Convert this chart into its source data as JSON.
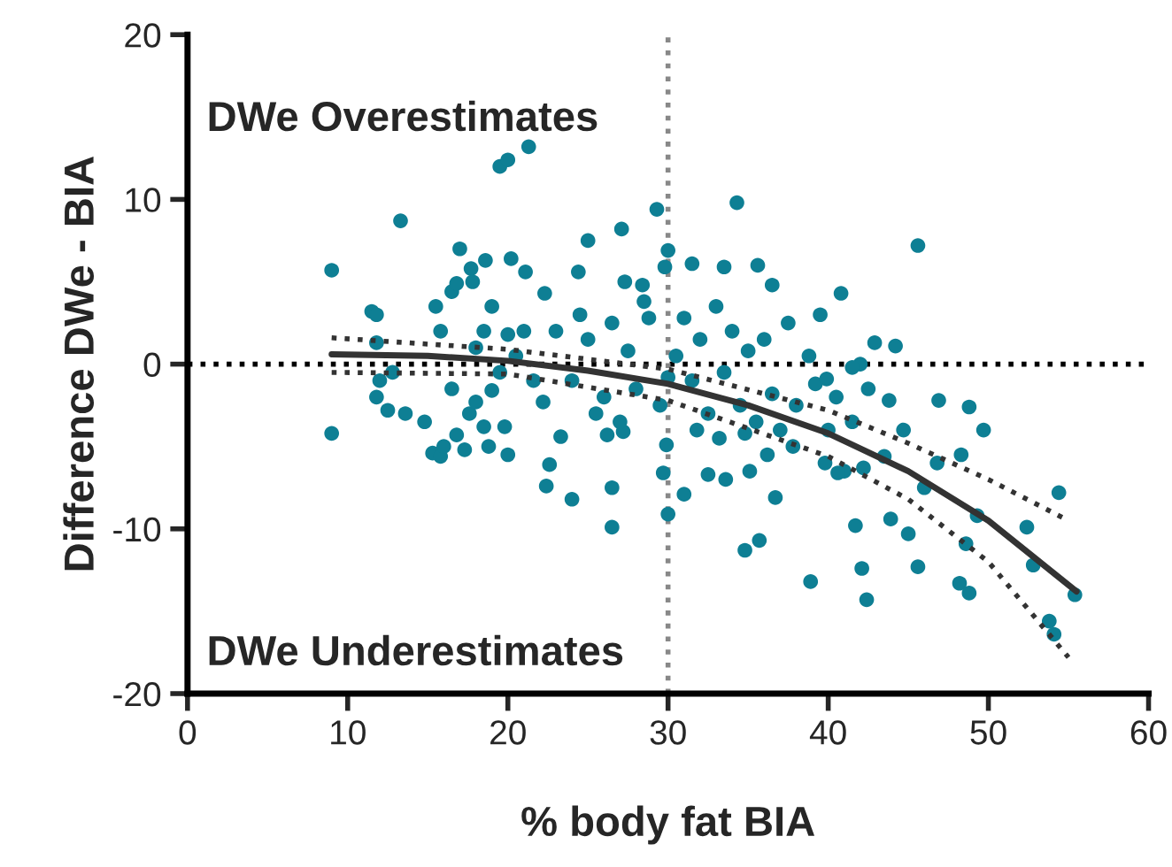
{
  "chart_data": {
    "type": "scatter",
    "xlabel": "% body fat BIA",
    "ylabel": "Difference DWe - BIA",
    "xlim": [
      0,
      60
    ],
    "ylim": [
      -20,
      20
    ],
    "xticks": [
      0,
      10,
      20,
      30,
      40,
      50,
      60
    ],
    "yticks": [
      -20,
      -10,
      0,
      10,
      20
    ],
    "grid": false,
    "annotations": [
      "DWe Overestimates",
      "DWe Underestimates"
    ],
    "ref_lines": [
      {
        "axis": "y",
        "value": 0,
        "color": "#000000",
        "line_style": "dotted"
      },
      {
        "axis": "x",
        "value": 30,
        "color": "#888888",
        "line_style": "dotted"
      }
    ],
    "series": [
      {
        "marker": "circle",
        "color": "#0e7f94",
        "x": [
          9.0,
          9.0,
          11.5,
          11.8,
          11.8,
          13.3,
          12.8,
          11.8,
          12.0,
          13.6,
          12.5,
          14.8,
          15.3,
          15.8,
          16.0,
          16.8,
          17.6,
          16.5,
          15.5,
          15.8,
          16.5,
          16.8,
          17.0,
          17.7,
          17.8,
          18.6,
          19.0,
          18.5,
          18.0,
          19.5,
          20.0,
          21.3,
          20.2,
          20.0,
          19.5,
          19.0,
          18.0,
          18.5,
          19.8,
          20.0,
          18.8,
          17.3,
          20.5,
          21.0,
          21.6,
          22.2,
          21.1,
          25.0,
          27.1,
          29.3,
          30.0,
          29.8,
          31.5,
          33.5,
          34.3,
          35.6,
          36.5,
          27.3,
          28.4,
          24.4,
          22.3,
          22.4,
          24.0,
          26.5,
          26.5,
          30.0,
          31.0,
          32.5,
          33.6,
          35.1,
          34.8,
          35.7,
          36.7,
          38.9,
          29.7,
          29.9,
          22.6,
          26.2,
          27.2,
          23.3,
          23,
          24,
          25,
          26,
          26.5,
          27.5,
          28,
          28.8,
          29.5,
          30.5,
          31,
          31.5,
          32,
          32.5,
          33,
          33.5,
          34,
          34.5,
          35,
          35.5,
          36,
          36.5,
          37,
          37.5,
          38,
          24.5,
          25.5,
          27,
          28.5,
          30,
          31.8,
          33.2,
          34.8,
          36.2,
          37.8,
          38.8,
          39.2,
          39.5,
          39.8,
          40,
          40.5,
          41,
          41.5,
          42,
          45.6,
          40.8,
          42.9,
          44.2,
          41.5,
          46.9,
          48.8,
          49.7,
          48.3,
          46.8,
          46.0,
          54.4,
          52.4,
          49.3,
          48.6,
          52.8,
          48.2,
          48.8,
          45.6,
          45.0,
          43.9,
          42.1,
          42.4,
          41.7,
          53.8,
          54.1,
          55.4,
          43.5,
          42.2,
          40.6,
          44.7,
          43.8,
          42.5,
          39.9
        ],
        "values": [
          5.7,
          -4.2,
          3.2,
          3.0,
          1.3,
          8.7,
          -0.5,
          -2.0,
          -1.0,
          -3.0,
          -2.8,
          -3.5,
          -5.4,
          -5.6,
          -5.0,
          -4.3,
          -3.0,
          -1.5,
          3.5,
          2.0,
          4.4,
          4.9,
          7.0,
          5.8,
          5.0,
          6.3,
          3.5,
          2.0,
          1.0,
          12.0,
          12.4,
          13.2,
          6.4,
          1.8,
          -0.5,
          -1.6,
          -2.3,
          -3.8,
          -3.8,
          -5.5,
          -5.0,
          -5.2,
          0.5,
          2.0,
          -1.0,
          -2.3,
          5.6,
          7.5,
          8.2,
          9.4,
          6.9,
          5.9,
          6.1,
          5.9,
          9.8,
          6.0,
          4.8,
          5.0,
          4.8,
          5.6,
          4.3,
          -7.4,
          -8.2,
          -9.9,
          -7.5,
          -9.1,
          -7.9,
          -6.7,
          -7.0,
          -6.5,
          -11.3,
          -10.7,
          -8.1,
          -13.2,
          -6.6,
          -4.9,
          -6.1,
          -4.3,
          -4.1,
          -4.4,
          2,
          -1,
          1.5,
          -2,
          2.5,
          0.8,
          -1.5,
          2.8,
          -2.5,
          0.5,
          2.8,
          -1,
          1.5,
          -3,
          3.5,
          -0.5,
          2,
          -2.5,
          0.8,
          -3.5,
          1.5,
          -1.8,
          -4,
          2.5,
          -2.5,
          3,
          -3,
          -3.5,
          3.8,
          -0.8,
          -4,
          -4.5,
          -4.2,
          -5.5,
          -5,
          0.5,
          -1.2,
          3,
          -6,
          -4,
          -2,
          -6.5,
          -3.5,
          0,
          7.2,
          4.3,
          1.3,
          1.1,
          -0.2,
          -2.2,
          -2.6,
          -4.0,
          -5.5,
          -6.0,
          -7.5,
          -7.8,
          -9.9,
          -9.2,
          -10.9,
          -12.2,
          -13.3,
          -13.9,
          -12.3,
          -10.3,
          -9.4,
          -12.4,
          -14.3,
          -9.8,
          -15.6,
          -16.4,
          -14.0,
          -5.6,
          -6.3,
          -6.6,
          -4.0,
          -2.2,
          -1.5,
          -0.9
        ]
      },
      {
        "type": "line",
        "marker": "none",
        "color": "#333333",
        "line_style": "solid",
        "x": [
          9,
          15,
          20,
          25,
          30,
          35,
          40,
          45,
          50,
          55.5
        ],
        "values": [
          0.6,
          0.5,
          0.2,
          -0.4,
          -1.2,
          -2.5,
          -4.2,
          -6.5,
          -9.5,
          -13.8
        ]
      },
      {
        "type": "line",
        "color": "#333333",
        "line_style": "dotted",
        "x": [
          9,
          20,
          30,
          40,
          45,
          50,
          55
        ],
        "values": [
          1.6,
          0.9,
          -0.3,
          -2.8,
          -4.8,
          -7.0,
          -9.5
        ]
      },
      {
        "type": "line",
        "color": "#333333",
        "line_style": "dotted",
        "x": [
          9,
          20,
          30,
          40,
          45,
          50,
          55
        ],
        "values": [
          -0.5,
          -0.6,
          -2.2,
          -5.6,
          -8.2,
          -12.0,
          -17.8
        ]
      }
    ]
  }
}
